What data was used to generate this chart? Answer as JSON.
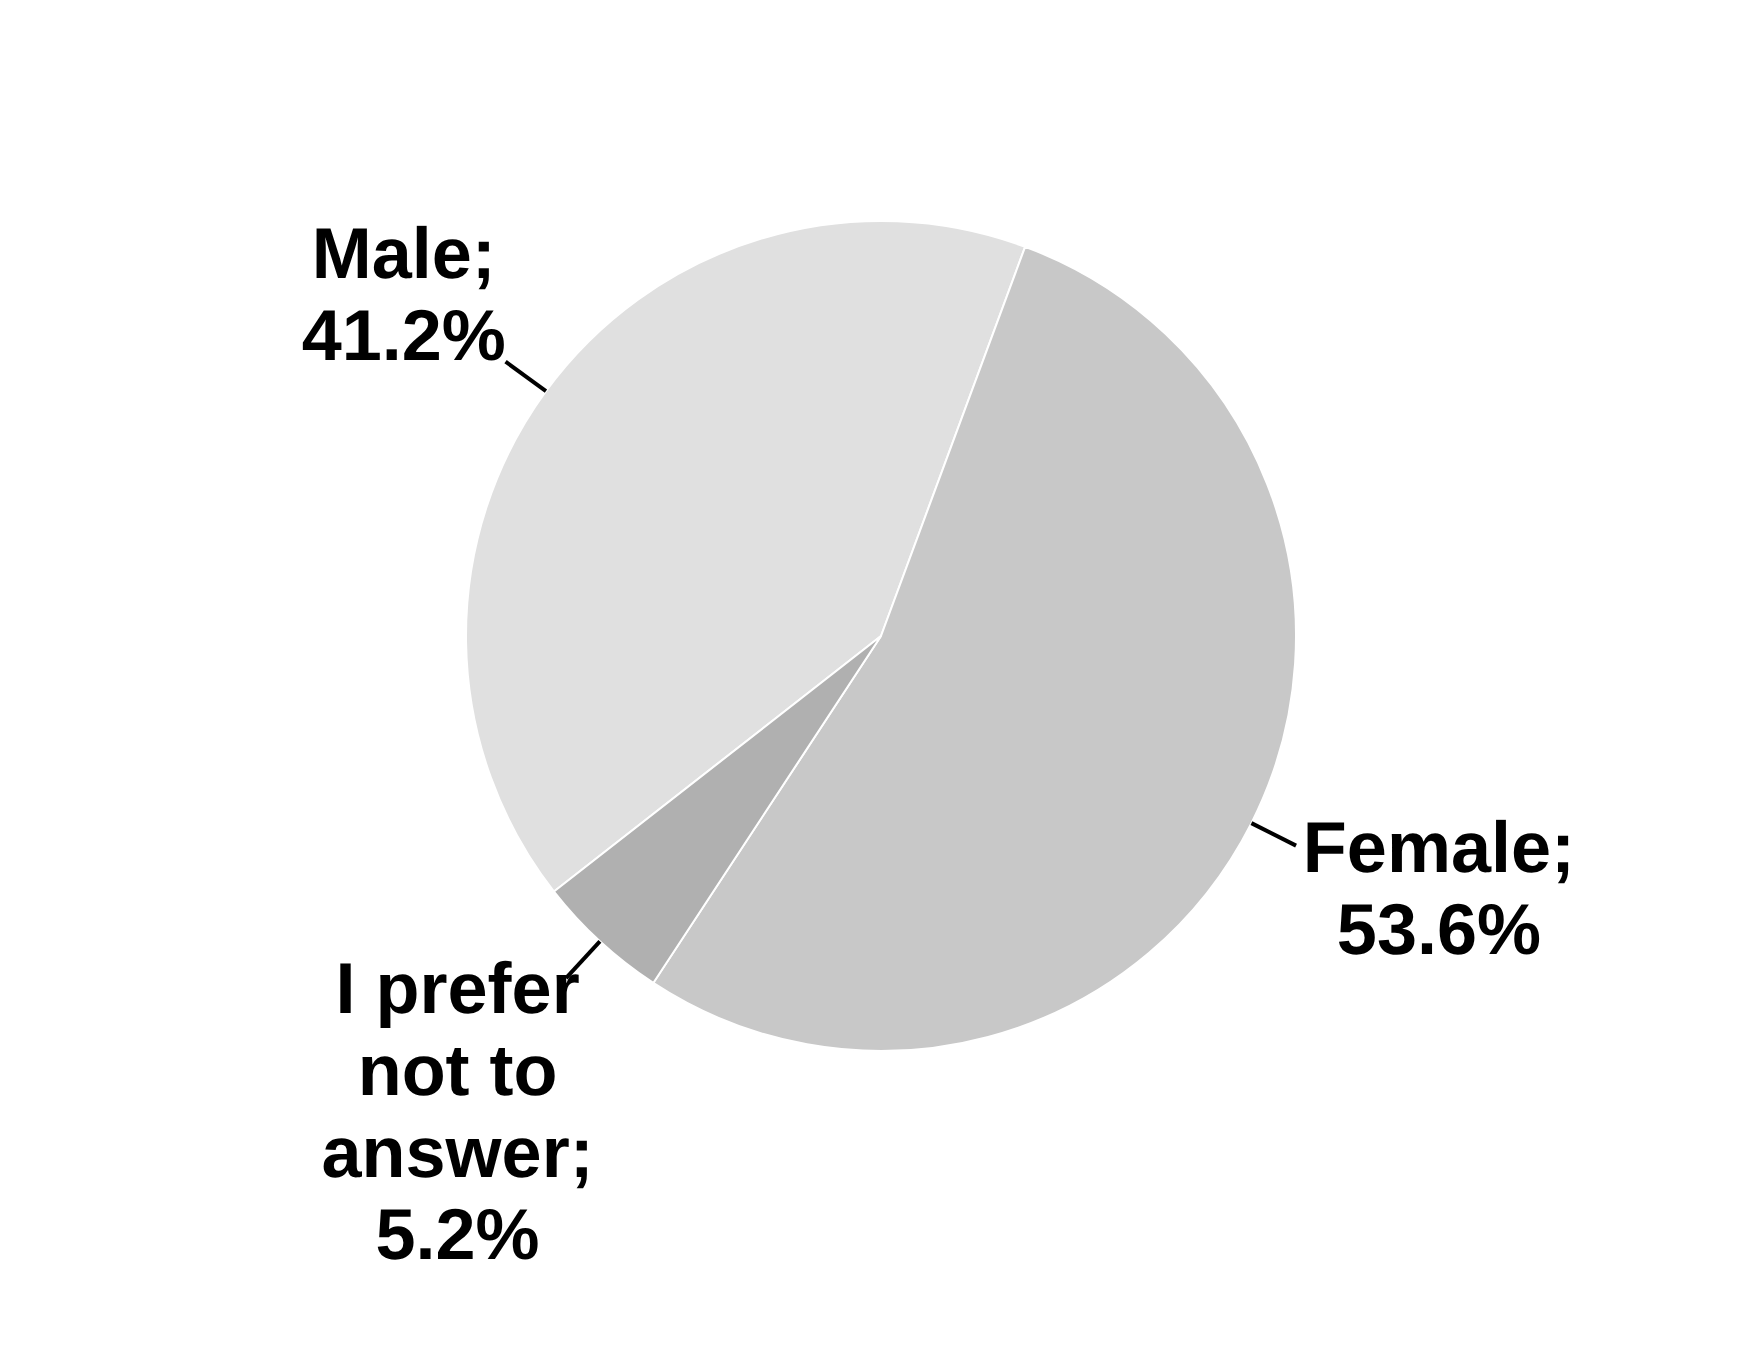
{
  "chart_data": {
    "type": "pie",
    "categories": [
      "Male",
      "Female",
      "I prefer not to answer"
    ],
    "values": [
      41.2,
      53.6,
      5.2
    ],
    "value_labels": [
      "; 41.2%",
      "; 53.6%",
      "; 5.2%"
    ],
    "colors": [
      "#e0e0e0",
      "#c8c8c8",
      "#b0b0b0"
    ],
    "legend": false
  }
}
